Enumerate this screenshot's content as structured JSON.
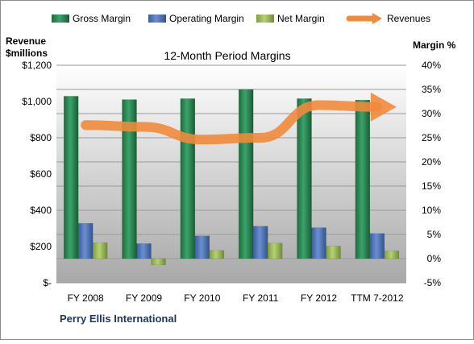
{
  "chart_data": {
    "type": "bar",
    "title": "12-Month Period Margins",
    "company": "Perry Ellis International",
    "left_axis_title": [
      "Revenue",
      "$millions"
    ],
    "right_axis_title": "Margin %",
    "categories": [
      "FY 2008",
      "FY 2009",
      "FY 2010",
      "FY 2011",
      "FY 2012",
      "TTM 7-2012"
    ],
    "y_left": {
      "ylim": [
        0,
        1200
      ],
      "ticks": [
        0,
        200,
        400,
        600,
        800,
        1000,
        1200
      ],
      "tick_labels": [
        "$-",
        "$200",
        "$400",
        "$600",
        "$800",
        "$1,000",
        "$1,200"
      ]
    },
    "y_right": {
      "ylim": [
        -5,
        40
      ],
      "ticks": [
        -5,
        0,
        5,
        10,
        15,
        20,
        25,
        30,
        35,
        40
      ],
      "tick_labels": [
        "-5%",
        "0%",
        "5%",
        "10%",
        "15%",
        "20%",
        "25%",
        "30%",
        "35%",
        "40%"
      ]
    },
    "series": [
      {
        "name": "Gross Margin",
        "axis": "right",
        "kind": "bar",
        "color": "#2e8b57",
        "values": [
          33.6,
          32.9,
          33.1,
          35.0,
          33.1,
          32.8
        ]
      },
      {
        "name": "Operating Margin",
        "axis": "right",
        "kind": "bar",
        "color": "#4f74b8",
        "values": [
          7.3,
          3.1,
          4.7,
          6.7,
          6.4,
          5.2
        ]
      },
      {
        "name": "Net Margin",
        "axis": "right",
        "kind": "bar",
        "color": "#9bbb59",
        "values": [
          3.3,
          -1.3,
          1.7,
          3.2,
          2.6,
          1.6
        ]
      },
      {
        "name": "Revenues",
        "axis": "left",
        "kind": "line",
        "color": "#f08a3c",
        "values": [
          870,
          860,
          790,
          800,
          980,
          970
        ]
      }
    ],
    "grid": true,
    "legend_position": "top"
  }
}
